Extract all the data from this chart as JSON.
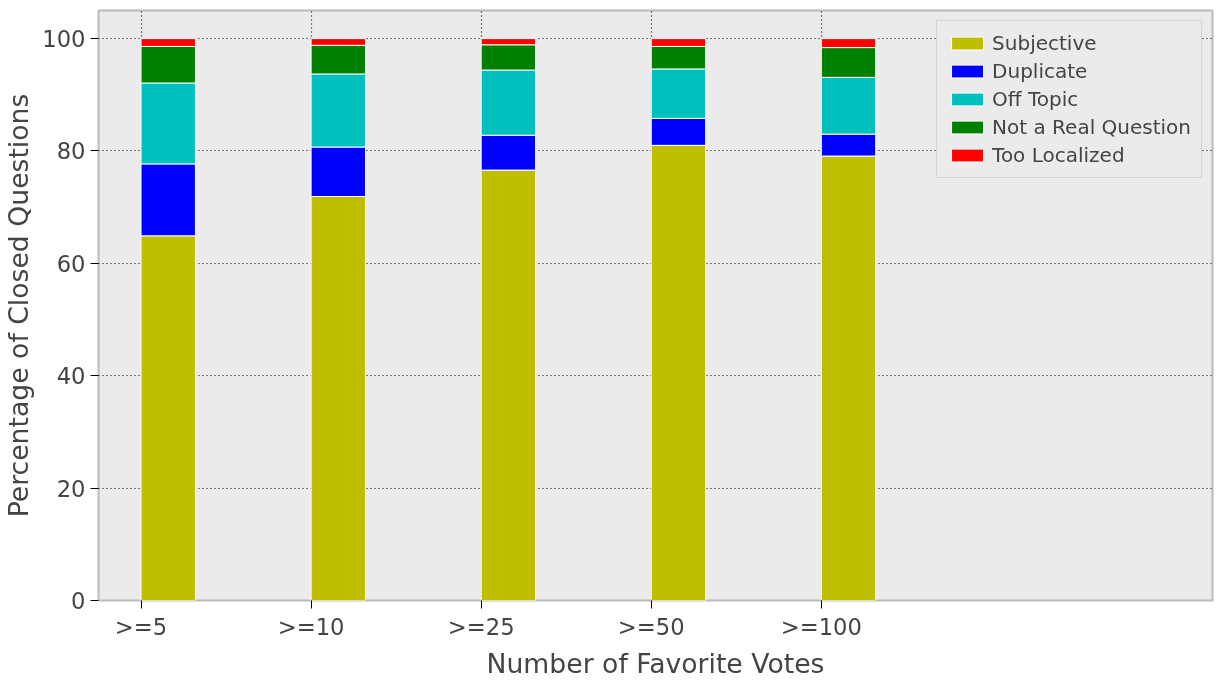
{
  "chart_data": {
    "type": "bar",
    "stacked": true,
    "xlabel": "Number of Favorite Votes",
    "ylabel": "Percentage of Closed Questions",
    "categories": [
      ">=5",
      ">=10",
      ">=25",
      ">=50",
      ">=100"
    ],
    "series": [
      {
        "name": "Subjective",
        "color": "#bfbf00",
        "values": [
          64.9,
          71.9,
          76.6,
          81.0,
          79.1
        ]
      },
      {
        "name": "Duplicate",
        "color": "#0000ff",
        "values": [
          12.8,
          8.8,
          6.2,
          4.8,
          3.9
        ]
      },
      {
        "name": "Off Topic",
        "color": "#00bfbf",
        "values": [
          14.4,
          13.0,
          11.6,
          8.8,
          10.1
        ]
      },
      {
        "name": "Not a Real Question",
        "color": "#008000",
        "values": [
          6.5,
          5.1,
          4.5,
          4.0,
          5.3
        ]
      },
      {
        "name": "Too Localized",
        "color": "#ff0000",
        "values": [
          1.4,
          1.2,
          1.1,
          1.4,
          1.6
        ]
      }
    ],
    "ylim": [
      0,
      105
    ],
    "yticks": [
      0,
      20,
      40,
      60,
      80,
      100
    ],
    "grid": true,
    "legend": "top right"
  }
}
